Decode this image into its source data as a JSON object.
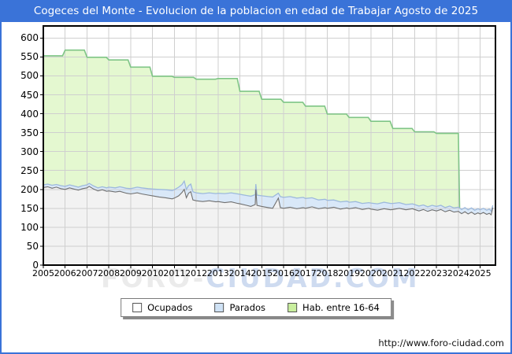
{
  "title": "Cogeces del Monte - Evolucion de la poblacion en edad de Trabajar Agosto de 2025",
  "footer_url": "http://www.foro-ciudad.com",
  "watermark": {
    "part1": "FORO-",
    "part2": "CIUDAD.COM"
  },
  "colors": {
    "accent_blue": "#3a73d8",
    "grid": "#cfcfcf",
    "plot_border": "#000000",
    "green_fill": "#e4f8d0",
    "green_line": "#7fc586",
    "blue_fill": "#d9e8f8",
    "blue_line": "#9db9dc",
    "gray_fill": "#f2f2f2",
    "gray_line": "#707070"
  },
  "legend": [
    {
      "label": "Ocupados",
      "swatch": "#ffffff",
      "swatch_border": "#555555"
    },
    {
      "label": "Parados",
      "swatch": "#cfe2f5",
      "swatch_border": "#555555"
    },
    {
      "label": "Hab. entre 16-64",
      "swatch": "#c9ef9e",
      "swatch_border": "#555555"
    }
  ],
  "chart_data": {
    "type": "area",
    "title": "Cogeces del Monte - Evolucion de la poblacion en edad de Trabajar Agosto de 2025",
    "xlabel": "",
    "ylabel": "",
    "ylim": [
      0,
      600
    ],
    "ytick_step": 50,
    "yticks": [
      0,
      50,
      100,
      150,
      200,
      250,
      300,
      350,
      400,
      450,
      500,
      550,
      600
    ],
    "xticks": [
      2005,
      2006,
      2007,
      2008,
      2009,
      2010,
      2011,
      2012,
      2013,
      2014,
      2015,
      2016,
      2017,
      2018,
      2019,
      2020,
      2021,
      2022,
      2023,
      2024,
      2025
    ],
    "grid": true,
    "legend_position": "bottom",
    "note": "Parados series is stacked on Ocupados: its plotted top line equals Ocupados + Parados. Hab. entre 16-64 is an annual step series ending at 2024.",
    "x_monthly": [
      2005.0,
      2005.2,
      2005.4,
      2005.6,
      2005.8,
      2006.0,
      2006.2,
      2006.4,
      2006.6,
      2006.8,
      2007.0,
      2007.1,
      2007.3,
      2007.5,
      2007.7,
      2007.9,
      2008.0,
      2008.3,
      2008.5,
      2008.8,
      2009.0,
      2009.3,
      2009.5,
      2009.8,
      2010.0,
      2010.3,
      2010.6,
      2010.9,
      2011.0,
      2011.2,
      2011.35,
      2011.45,
      2011.55,
      2011.65,
      2011.75,
      2011.85,
      2012.0,
      2012.3,
      2012.6,
      2012.9,
      2013.0,
      2013.3,
      2013.6,
      2013.9,
      2014.0,
      2014.3,
      2014.5,
      2014.7,
      2014.73,
      2014.78,
      2015.0,
      2015.3,
      2015.5,
      2015.76,
      2015.85,
      2016.0,
      2016.3,
      2016.6,
      2016.9,
      2017.0,
      2017.3,
      2017.6,
      2017.9,
      2018.0,
      2018.3,
      2018.6,
      2018.9,
      2019.0,
      2019.3,
      2019.6,
      2019.9,
      2020.0,
      2020.3,
      2020.6,
      2020.9,
      2021.0,
      2021.3,
      2021.6,
      2021.9,
      2022.0,
      2022.2,
      2022.4,
      2022.6,
      2022.8,
      2023.0,
      2023.2,
      2023.4,
      2023.6,
      2023.8,
      2024.0,
      2024.15,
      2024.3,
      2024.45,
      2024.6,
      2024.75,
      2024.9,
      2025.0,
      2025.15,
      2025.3,
      2025.42,
      2025.5,
      2025.58
    ],
    "series": [
      {
        "name": "Hab. entre 16-64",
        "kind": "step-annual",
        "years": [
          2005,
          2006,
          2007,
          2008,
          2009,
          2010,
          2011,
          2012,
          2013,
          2014,
          2015,
          2016,
          2017,
          2018,
          2019,
          2020,
          2021,
          2022,
          2023
        ],
        "values": [
          553,
          568,
          549,
          542,
          523,
          499,
          496,
          491,
          493,
          459,
          438,
          430,
          420,
          399,
          390,
          380,
          361,
          352,
          348
        ],
        "ends_at": 2024.06
      },
      {
        "name": "Parados (top = Ocupados+Parados)",
        "kind": "monthly",
        "values": [
          212,
          214,
          211,
          213,
          210,
          208,
          212,
          209,
          206,
          210,
          212,
          216,
          209,
          204,
          207,
          204,
          206,
          204,
          207,
          203,
          202,
          206,
          204,
          202,
          201,
          200,
          199,
          197,
          199,
          206,
          213,
          222,
          200,
          210,
          214,
          194,
          191,
          189,
          191,
          189,
          190,
          189,
          191,
          188,
          187,
          184,
          182,
          186,
          214,
          185,
          183,
          181,
          180,
          190,
          181,
          179,
          181,
          177,
          179,
          176,
          178,
          172,
          174,
          171,
          172,
          167,
          169,
          166,
          168,
          163,
          165,
          164,
          162,
          166,
          163,
          163,
          165,
          160,
          162,
          160,
          156,
          159,
          154,
          158,
          155,
          158,
          152,
          156,
          151,
          153,
          147,
          152,
          146,
          151,
          145,
          149,
          146,
          150,
          145,
          148,
          143,
          158
        ]
      },
      {
        "name": "Ocupados",
        "kind": "monthly",
        "values": [
          205,
          207,
          203,
          206,
          202,
          200,
          204,
          201,
          198,
          202,
          204,
          208,
          201,
          196,
          199,
          195,
          196,
          193,
          195,
          190,
          188,
          191,
          188,
          185,
          183,
          180,
          178,
          175,
          177,
          183,
          192,
          200,
          178,
          190,
          194,
          172,
          170,
          168,
          170,
          167,
          168,
          165,
          167,
          163,
          162,
          158,
          155,
          160,
          200,
          158,
          155,
          152,
          150,
          177,
          152,
          150,
          153,
          149,
          152,
          150,
          154,
          149,
          152,
          150,
          153,
          148,
          151,
          149,
          152,
          147,
          150,
          148,
          145,
          149,
          146,
          147,
          150,
          146,
          149,
          147,
          143,
          147,
          142,
          146,
          143,
          147,
          141,
          145,
          140,
          142,
          136,
          141,
          135,
          140,
          134,
          138,
          135,
          139,
          134,
          137,
          133,
          152
        ]
      }
    ]
  }
}
